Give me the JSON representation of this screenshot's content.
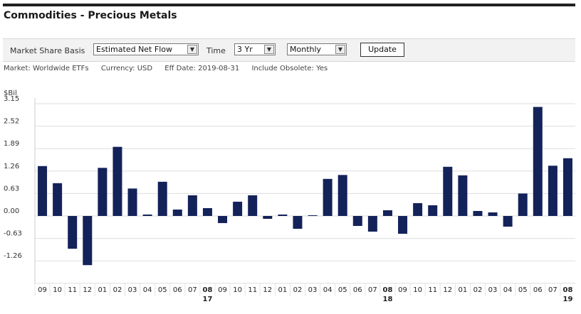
{
  "page_title": "Commodities - Precious Metals",
  "toolbar": {
    "basis_label": "Market Share Basis",
    "basis_value": "Estimated Net Flow",
    "time_label": "Time",
    "time_value": "3 Yr",
    "period_value": "Monthly",
    "update_label": "Update"
  },
  "meta": {
    "market_label": "Market:",
    "market_value": "Worldwide ETFs",
    "currency_label": "Currency:",
    "currency_value": "USD",
    "eff_date_label": "Eff Date:",
    "eff_date_value": "2019-08-31",
    "obsolete_label": "Include Obsolete:",
    "obsolete_value": "Yes"
  },
  "colors": {
    "bar": "#14225a",
    "grid": "#dddddd",
    "axis": "#888888"
  },
  "chart_data": {
    "type": "bar",
    "ylabel": "$Bil",
    "yticks": [
      "3.15",
      "2.52",
      "1.89",
      "1.26",
      "0.63",
      "0.00",
      "-0.63",
      "-1.26"
    ],
    "ylim": [
      -1.89,
      3.15
    ],
    "grid": true,
    "categories": [
      "09",
      "10",
      "11",
      "12",
      "01",
      "02",
      "03",
      "04",
      "05",
      "06",
      "07",
      "08",
      "09",
      "10",
      "11",
      "12",
      "01",
      "02",
      "03",
      "04",
      "05",
      "06",
      "07",
      "08",
      "09",
      "10",
      "11",
      "12",
      "01",
      "02",
      "03",
      "04",
      "05",
      "06",
      "07",
      "08"
    ],
    "year_markers": [
      {
        "index": 11,
        "label": "17"
      },
      {
        "index": 23,
        "label": "18"
      },
      {
        "index": 35,
        "label": "19"
      }
    ],
    "values": [
      1.4,
      0.92,
      -0.92,
      -1.38,
      1.35,
      1.94,
      0.77,
      0.04,
      0.96,
      0.18,
      0.58,
      0.22,
      -0.2,
      0.4,
      0.58,
      -0.08,
      0.04,
      -0.36,
      0.02,
      1.04,
      1.15,
      -0.28,
      -0.44,
      0.16,
      -0.5,
      0.36,
      0.3,
      1.38,
      1.14,
      0.14,
      0.1,
      -0.3,
      0.63,
      3.06,
      1.41,
      1.62
    ]
  }
}
